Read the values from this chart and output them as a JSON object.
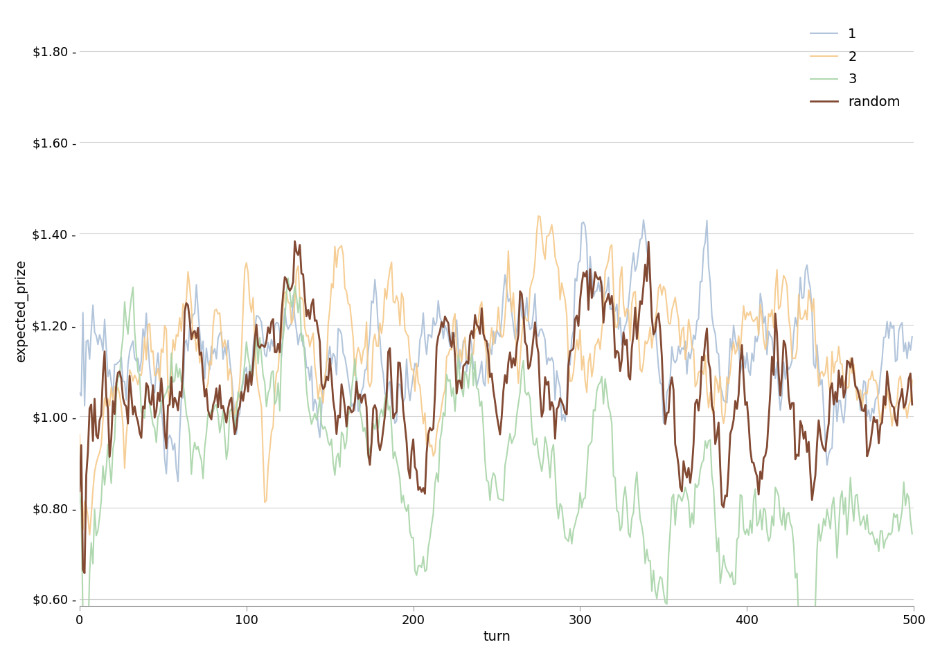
{
  "title": "",
  "xlabel": "turn",
  "ylabel": "expected_prize",
  "xlim": [
    0,
    500
  ],
  "ylim": [
    0.585,
    1.88
  ],
  "yticks": [
    0.6,
    0.8,
    1.0,
    1.2,
    1.4,
    1.6,
    1.8
  ],
  "ytick_labels": [
    "$0.60 -",
    "$0.80 -",
    "$1.00 -",
    "$1.20 -",
    "$1.40 -",
    "$1.60 -",
    "$1.80 -"
  ],
  "xticks": [
    0,
    100,
    200,
    300,
    400,
    500
  ],
  "series_colors": {
    "1": "#aabfd8",
    "2": "#f5c98a",
    "3": "#a8d4a8",
    "random": "#7b3f28"
  },
  "series_linewidths": {
    "1": 1.5,
    "2": 1.5,
    "3": 1.5,
    "random": 2.0
  },
  "background_color": "#ffffff",
  "grid_color": "#d0d0d0",
  "n_turns": 500,
  "legend_loc": "upper right",
  "font_size": 14,
  "tick_font_size": 13
}
